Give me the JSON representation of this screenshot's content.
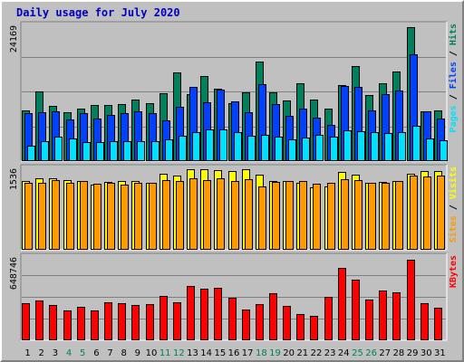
{
  "chart_data": {
    "type": "bar",
    "title": "Daily usage for July 2020",
    "categories": [
      "1",
      "2",
      "3",
      "4",
      "5",
      "6",
      "7",
      "8",
      "9",
      "10",
      "11",
      "12",
      "13",
      "14",
      "15",
      "16",
      "17",
      "18",
      "19",
      "20",
      "21",
      "22",
      "23",
      "24",
      "25",
      "26",
      "27",
      "28",
      "29",
      "30",
      "31"
    ],
    "weekend_categories": [
      "4",
      "5",
      "11",
      "12",
      "18",
      "19",
      "25",
      "26"
    ],
    "panels": [
      {
        "id": "hits-files-pages",
        "max_tick_label": "24169",
        "ylim": [
          0,
          24169
        ],
        "legend": [
          "Pages",
          "/",
          "Files",
          "/",
          "Hits"
        ],
        "series": [
          {
            "name": "Hits",
            "color": "#00805c",
            "values": [
              9100,
              12400,
              9900,
              8700,
              9400,
              10000,
              10000,
              10200,
              11000,
              10300,
              12100,
              15800,
              11900,
              15200,
              12900,
              10300,
              12300,
              17800,
              12300,
              10800,
              13800,
              10900,
              9400,
              13600,
              16900,
              11800,
              13800,
              15900,
              23900,
              8800,
              9000
            ]
          },
          {
            "name": "Files",
            "color": "#0040ff",
            "values": [
              8600,
              8700,
              8900,
              7400,
              8600,
              7500,
              8200,
              8500,
              8800,
              8500,
              7300,
              9700,
              13200,
              10500,
              12700,
              10700,
              8700,
              13700,
              10200,
              8100,
              9300,
              7800,
              6500,
              13400,
              13200,
              9000,
              11900,
              12500,
              19000,
              8900,
              7500
            ]
          },
          {
            "name": "Pages",
            "color": "#00e0ff",
            "values": [
              2800,
              3500,
              4300,
              4100,
              3400,
              3400,
              3600,
              3500,
              3600,
              3500,
              3800,
              4500,
              5200,
              5700,
              5600,
              5200,
              4500,
              4600,
              4300,
              3900,
              4200,
              4700,
              4400,
              5400,
              5300,
              5200,
              5000,
              5200,
              6300,
              4100,
              3700
            ]
          }
        ]
      },
      {
        "id": "visits-sites",
        "max_tick_label": "1536",
        "ylim": [
          0,
          1536
        ],
        "legend": [
          "Sites",
          "/",
          "Visits"
        ],
        "series": [
          {
            "name": "Visits",
            "color": "#ffff00",
            "values": [
              1300,
              1340,
              1340,
              1320,
              1290,
              1230,
              1280,
              1300,
              1300,
              1270,
              1440,
              1400,
              1520,
              1520,
              1500,
              1480,
              1520,
              1420,
              1300,
              1300,
              1270,
              1180,
              1200,
              1470,
              1420,
              1270,
              1280,
              1300,
              1440,
              1490,
              1480
            ]
          },
          {
            "name": "Sites",
            "color": "#ff9900",
            "values": [
              1270,
              1270,
              1320,
              1270,
              1290,
              1240,
              1270,
              1230,
              1270,
              1260,
              1320,
              1300,
              1350,
              1320,
              1340,
              1300,
              1330,
              1200,
              1280,
              1290,
              1300,
              1250,
              1260,
              1330,
              1310,
              1260,
              1260,
              1290,
              1400,
              1390,
              1400
            ]
          }
        ]
      },
      {
        "id": "kbytes",
        "max_tick_label": "648746",
        "ylim": [
          0,
          648746
        ],
        "legend": [
          "KBytes"
        ],
        "series": [
          {
            "name": "KBytes",
            "color": "#ff0000",
            "values": [
              286000,
              307000,
              275000,
              231000,
              261000,
              236000,
              297000,
              286000,
              275000,
              281000,
              344000,
              297000,
              421000,
              405000,
              407000,
              333000,
              237000,
              281000,
              370000,
              268000,
              202000,
              189000,
              339000,
              567000,
              469000,
              318000,
              387000,
              375000,
              629000,
              291000,
              254000
            ]
          }
        ]
      }
    ]
  }
}
